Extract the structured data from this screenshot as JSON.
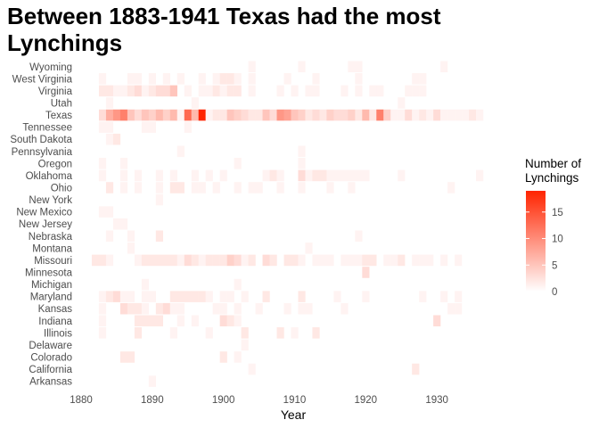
{
  "chart_data": {
    "type": "heatmap",
    "title_lines": [
      "Between 1883-1941 Texas had the most",
      "Lynchings"
    ],
    "xlabel": "Year",
    "ylabel": "",
    "xlim": [
      1880,
      1937
    ],
    "x_ticks": [
      1880,
      1890,
      1900,
      1910,
      1920,
      1930
    ],
    "categories": [
      "Wyoming",
      "West Virginia",
      "Virginia",
      "Utah",
      "Texas",
      "Tennessee",
      "South Dakota",
      "Pennsylvania",
      "Oregon",
      "Oklahoma",
      "Ohio",
      "New York",
      "New Mexico",
      "New Jersey",
      "Nebraska",
      "Montana",
      "Missouri",
      "Minnesota",
      "Michigan",
      "Maryland",
      "Kansas",
      "Indiana",
      "Illinois",
      "Delaware",
      "Colorado",
      "California",
      "Arkansas"
    ],
    "legend": {
      "title_lines": [
        "Number of",
        "Lynchings"
      ],
      "ticks": [
        0,
        5,
        10,
        15
      ],
      "range": [
        0,
        19
      ],
      "low_color": "#ffffff",
      "high_color": "#ff2400"
    },
    "series": [
      {
        "name": "Wyoming",
        "values": [
          [
            1904,
            1
          ],
          [
            1911,
            1
          ],
          [
            1918,
            1
          ],
          [
            1919,
            1
          ],
          [
            1931,
            1
          ]
        ]
      },
      {
        "name": "West Virginia",
        "values": [
          [
            1883,
            1
          ],
          [
            1887,
            1
          ],
          [
            1888,
            1
          ],
          [
            1890,
            1
          ],
          [
            1892,
            1
          ],
          [
            1894,
            1
          ],
          [
            1897,
            1
          ],
          [
            1899,
            1
          ],
          [
            1900,
            2
          ],
          [
            1901,
            2
          ],
          [
            1902,
            1
          ],
          [
            1904,
            1
          ],
          [
            1909,
            1
          ],
          [
            1913,
            1
          ],
          [
            1919,
            1
          ],
          [
            1927,
            1
          ],
          [
            1928,
            1
          ]
        ]
      },
      {
        "name": "Virginia",
        "values": [
          [
            1883,
            2
          ],
          [
            1884,
            2
          ],
          [
            1885,
            1
          ],
          [
            1886,
            1
          ],
          [
            1887,
            2
          ],
          [
            1888,
            3
          ],
          [
            1889,
            1
          ],
          [
            1890,
            2
          ],
          [
            1891,
            3
          ],
          [
            1892,
            3
          ],
          [
            1893,
            5
          ],
          [
            1895,
            1
          ],
          [
            1897,
            1
          ],
          [
            1898,
            1
          ],
          [
            1899,
            2
          ],
          [
            1900,
            1
          ],
          [
            1901,
            2
          ],
          [
            1902,
            2
          ],
          [
            1904,
            1
          ],
          [
            1908,
            1
          ],
          [
            1910,
            1
          ],
          [
            1912,
            1
          ],
          [
            1913,
            1
          ],
          [
            1917,
            1
          ],
          [
            1919,
            1
          ],
          [
            1921,
            1
          ],
          [
            1922,
            1
          ],
          [
            1926,
            1
          ],
          [
            1927,
            1
          ],
          [
            1928,
            1
          ]
        ]
      },
      {
        "name": "Utah",
        "values": [
          [
            1884,
            1
          ],
          [
            1896,
            1
          ],
          [
            1925,
            1
          ]
        ]
      },
      {
        "name": "Texas",
        "values": [
          [
            1883,
            3
          ],
          [
            1884,
            7
          ],
          [
            1885,
            9
          ],
          [
            1886,
            11
          ],
          [
            1887,
            5
          ],
          [
            1888,
            3
          ],
          [
            1889,
            5
          ],
          [
            1890,
            4
          ],
          [
            1891,
            6
          ],
          [
            1892,
            4
          ],
          [
            1893,
            6
          ],
          [
            1894,
            1
          ],
          [
            1895,
            13
          ],
          [
            1896,
            6
          ],
          [
            1897,
            19
          ],
          [
            1898,
            1
          ],
          [
            1899,
            2
          ],
          [
            1900,
            2
          ],
          [
            1901,
            5
          ],
          [
            1902,
            4
          ],
          [
            1903,
            3
          ],
          [
            1904,
            2
          ],
          [
            1905,
            2
          ],
          [
            1906,
            5
          ],
          [
            1907,
            3
          ],
          [
            1908,
            9
          ],
          [
            1909,
            8
          ],
          [
            1910,
            5
          ],
          [
            1911,
            4
          ],
          [
            1912,
            2
          ],
          [
            1913,
            3
          ],
          [
            1914,
            2
          ],
          [
            1915,
            4
          ],
          [
            1916,
            3
          ],
          [
            1917,
            3
          ],
          [
            1918,
            4
          ],
          [
            1919,
            2
          ],
          [
            1920,
            6
          ],
          [
            1921,
            2
          ],
          [
            1922,
            11
          ],
          [
            1923,
            4
          ],
          [
            1924,
            1
          ],
          [
            1925,
            1
          ],
          [
            1926,
            3
          ],
          [
            1927,
            1
          ],
          [
            1928,
            2
          ],
          [
            1929,
            1
          ],
          [
            1930,
            3
          ],
          [
            1931,
            1
          ],
          [
            1932,
            1
          ],
          [
            1933,
            1
          ],
          [
            1934,
            1
          ],
          [
            1935,
            2
          ],
          [
            1936,
            1
          ]
        ]
      },
      {
        "name": "Tennessee",
        "values": [
          [
            1883,
            1
          ],
          [
            1884,
            1
          ],
          [
            1889,
            1
          ],
          [
            1890,
            1
          ],
          [
            1895,
            1
          ]
        ]
      },
      {
        "name": "South Dakota",
        "values": [
          [
            1884,
            1
          ],
          [
            1885,
            2
          ]
        ]
      },
      {
        "name": "Pennsylvania",
        "values": [
          [
            1894,
            1
          ],
          [
            1911,
            1
          ]
        ]
      },
      {
        "name": "Oregon",
        "values": [
          [
            1883,
            1
          ],
          [
            1886,
            1
          ],
          [
            1902,
            1
          ],
          [
            1911,
            1
          ]
        ]
      },
      {
        "name": "Oklahoma",
        "values": [
          [
            1883,
            1
          ],
          [
            1886,
            1
          ],
          [
            1888,
            1
          ],
          [
            1891,
            1
          ],
          [
            1893,
            1
          ],
          [
            1896,
            1
          ],
          [
            1898,
            1
          ],
          [
            1900,
            1
          ],
          [
            1906,
            1
          ],
          [
            1907,
            2
          ],
          [
            1908,
            1
          ],
          [
            1911,
            3
          ],
          [
            1912,
            1
          ],
          [
            1913,
            2
          ],
          [
            1914,
            2
          ],
          [
            1915,
            1
          ],
          [
            1916,
            1
          ],
          [
            1917,
            1
          ],
          [
            1918,
            1
          ],
          [
            1919,
            1
          ],
          [
            1920,
            1
          ],
          [
            1925,
            1
          ],
          [
            1936,
            1
          ]
        ]
      },
      {
        "name": "Ohio",
        "values": [
          [
            1884,
            2
          ],
          [
            1886,
            1
          ],
          [
            1888,
            1
          ],
          [
            1891,
            1
          ],
          [
            1893,
            2
          ],
          [
            1894,
            2
          ],
          [
            1896,
            1
          ],
          [
            1897,
            1
          ],
          [
            1899,
            1
          ],
          [
            1902,
            1
          ],
          [
            1904,
            1
          ],
          [
            1905,
            1
          ],
          [
            1908,
            1
          ],
          [
            1911,
            1
          ],
          [
            1915,
            1
          ],
          [
            1918,
            1
          ],
          [
            1932,
            1
          ]
        ]
      },
      {
        "name": "New York",
        "values": [
          [
            1891,
            1
          ]
        ]
      },
      {
        "name": "New Mexico",
        "values": [
          [
            1883,
            1
          ],
          [
            1884,
            1
          ]
        ]
      },
      {
        "name": "New Jersey",
        "values": [
          [
            1885,
            1
          ],
          [
            1886,
            1
          ]
        ]
      },
      {
        "name": "Nebraska",
        "values": [
          [
            1884,
            1
          ],
          [
            1887,
            1
          ],
          [
            1891,
            2
          ],
          [
            1919,
            1
          ]
        ]
      },
      {
        "name": "Montana",
        "values": [
          [
            1887,
            1
          ],
          [
            1912,
            1
          ]
        ]
      },
      {
        "name": "Missouri",
        "values": [
          [
            1882,
            2
          ],
          [
            1883,
            2
          ],
          [
            1884,
            1
          ],
          [
            1888,
            1
          ],
          [
            1889,
            2
          ],
          [
            1890,
            2
          ],
          [
            1891,
            2
          ],
          [
            1892,
            2
          ],
          [
            1893,
            2
          ],
          [
            1894,
            1
          ],
          [
            1895,
            3
          ],
          [
            1896,
            2
          ],
          [
            1897,
            1
          ],
          [
            1898,
            2
          ],
          [
            1899,
            2
          ],
          [
            1900,
            2
          ],
          [
            1901,
            4
          ],
          [
            1902,
            3
          ],
          [
            1903,
            1
          ],
          [
            1904,
            2
          ],
          [
            1906,
            3
          ],
          [
            1907,
            2
          ],
          [
            1909,
            2
          ],
          [
            1910,
            2
          ],
          [
            1911,
            1
          ],
          [
            1913,
            1
          ],
          [
            1914,
            1
          ],
          [
            1915,
            1
          ],
          [
            1917,
            1
          ],
          [
            1918,
            1
          ],
          [
            1919,
            1
          ],
          [
            1920,
            2
          ],
          [
            1921,
            2
          ],
          [
            1923,
            1
          ],
          [
            1924,
            1
          ],
          [
            1925,
            2
          ],
          [
            1927,
            1
          ],
          [
            1928,
            1
          ],
          [
            1929,
            1
          ],
          [
            1931,
            1
          ],
          [
            1933,
            1
          ]
        ]
      },
      {
        "name": "Minnesota",
        "values": [
          [
            1920,
            3
          ]
        ]
      },
      {
        "name": "Michigan",
        "values": [
          [
            1889,
            1
          ],
          [
            1902,
            1
          ]
        ]
      },
      {
        "name": "Maryland",
        "values": [
          [
            1883,
            1
          ],
          [
            1884,
            2
          ],
          [
            1885,
            3
          ],
          [
            1886,
            1
          ],
          [
            1887,
            1
          ],
          [
            1889,
            1
          ],
          [
            1890,
            1
          ],
          [
            1893,
            2
          ],
          [
            1894,
            2
          ],
          [
            1895,
            2
          ],
          [
            1896,
            2
          ],
          [
            1897,
            2
          ],
          [
            1898,
            1
          ],
          [
            1900,
            1
          ],
          [
            1901,
            1
          ],
          [
            1903,
            1
          ],
          [
            1906,
            2
          ],
          [
            1911,
            2
          ],
          [
            1916,
            1
          ],
          [
            1920,
            1
          ],
          [
            1928,
            1
          ],
          [
            1931,
            1
          ],
          [
            1933,
            1
          ]
        ]
      },
      {
        "name": "Kansas",
        "values": [
          [
            1883,
            1
          ],
          [
            1886,
            3
          ],
          [
            1887,
            2
          ],
          [
            1888,
            2
          ],
          [
            1889,
            1
          ],
          [
            1891,
            2
          ],
          [
            1892,
            3
          ],
          [
            1893,
            1
          ],
          [
            1894,
            1
          ],
          [
            1899,
            1
          ],
          [
            1900,
            1
          ],
          [
            1902,
            1
          ],
          [
            1905,
            1
          ],
          [
            1909,
            1
          ],
          [
            1911,
            1
          ],
          [
            1912,
            1
          ],
          [
            1917,
            1
          ],
          [
            1932,
            1
          ],
          [
            1933,
            1
          ]
        ]
      },
      {
        "name": "Indiana",
        "values": [
          [
            1883,
            1
          ],
          [
            1888,
            2
          ],
          [
            1889,
            2
          ],
          [
            1890,
            2
          ],
          [
            1891,
            2
          ],
          [
            1894,
            1
          ],
          [
            1896,
            1
          ],
          [
            1900,
            3
          ],
          [
            1901,
            2
          ],
          [
            1902,
            1
          ],
          [
            1930,
            3
          ]
        ]
      },
      {
        "name": "Illinois",
        "values": [
          [
            1883,
            1
          ],
          [
            1888,
            2
          ],
          [
            1893,
            1
          ],
          [
            1898,
            1
          ],
          [
            1903,
            2
          ],
          [
            1908,
            2
          ],
          [
            1910,
            1
          ],
          [
            1913,
            2
          ]
        ]
      },
      {
        "name": "Delaware",
        "values": [
          [
            1903,
            1
          ]
        ]
      },
      {
        "name": "Colorado",
        "values": [
          [
            1886,
            2
          ],
          [
            1887,
            2
          ],
          [
            1900,
            2
          ],
          [
            1902,
            1
          ]
        ]
      },
      {
        "name": "California",
        "values": [
          [
            1904,
            1
          ],
          [
            1927,
            2
          ]
        ]
      },
      {
        "name": "Arkansas",
        "values": [
          [
            1890,
            1
          ]
        ]
      }
    ]
  }
}
